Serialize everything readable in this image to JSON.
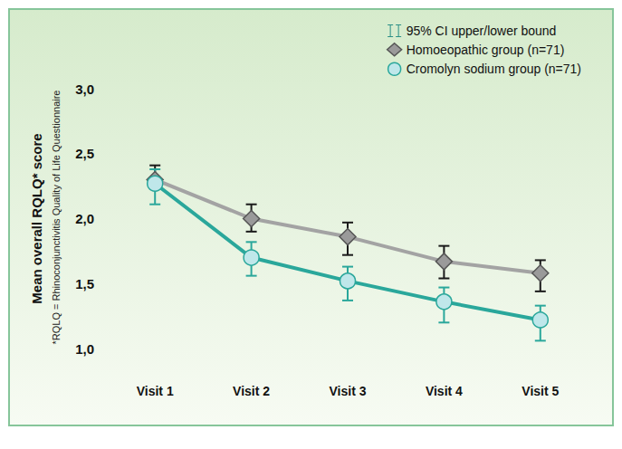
{
  "chart_data": {
    "type": "line",
    "y_label": "Mean overall RQLQ* score",
    "footnote": "*RQLQ = Rhinoconjunctivitis Quality of Life Questionnaire",
    "error_bar_label": "95% CI upper/lower bound",
    "categories": [
      "Visit 1",
      "Visit 2",
      "Visit 3",
      "Visit 4",
      "Visit 5"
    ],
    "series": [
      {
        "name": "Homoeopathic group (n=71)",
        "color": "#a3a3a3",
        "marker": "diamond",
        "values": [
          2.3,
          2.0,
          1.86,
          1.67,
          1.58
        ],
        "ci_lower": [
          2.23,
          1.9,
          1.72,
          1.54,
          1.44
        ],
        "ci_upper": [
          2.41,
          2.11,
          1.97,
          1.79,
          1.68
        ]
      },
      {
        "name": "Cromolyn sodium group (n=71)",
        "color": "#2aa79b",
        "marker": "circle",
        "values": [
          2.27,
          1.7,
          1.52,
          1.36,
          1.22
        ],
        "ci_lower": [
          2.11,
          1.56,
          1.37,
          1.2,
          1.06
        ],
        "ci_upper": [
          2.38,
          1.82,
          1.63,
          1.47,
          1.33
        ]
      }
    ],
    "ylim": [
      1,
      3
    ],
    "yticks": [
      {
        "value": 1,
        "label": "1,0"
      },
      {
        "value": 1.5,
        "label": "1,5"
      },
      {
        "value": 2,
        "label": "2,0"
      },
      {
        "value": 2.5,
        "label": "2,5"
      },
      {
        "value": 3,
        "label": "3,0"
      }
    ],
    "grid": false,
    "legend": "top-right"
  }
}
